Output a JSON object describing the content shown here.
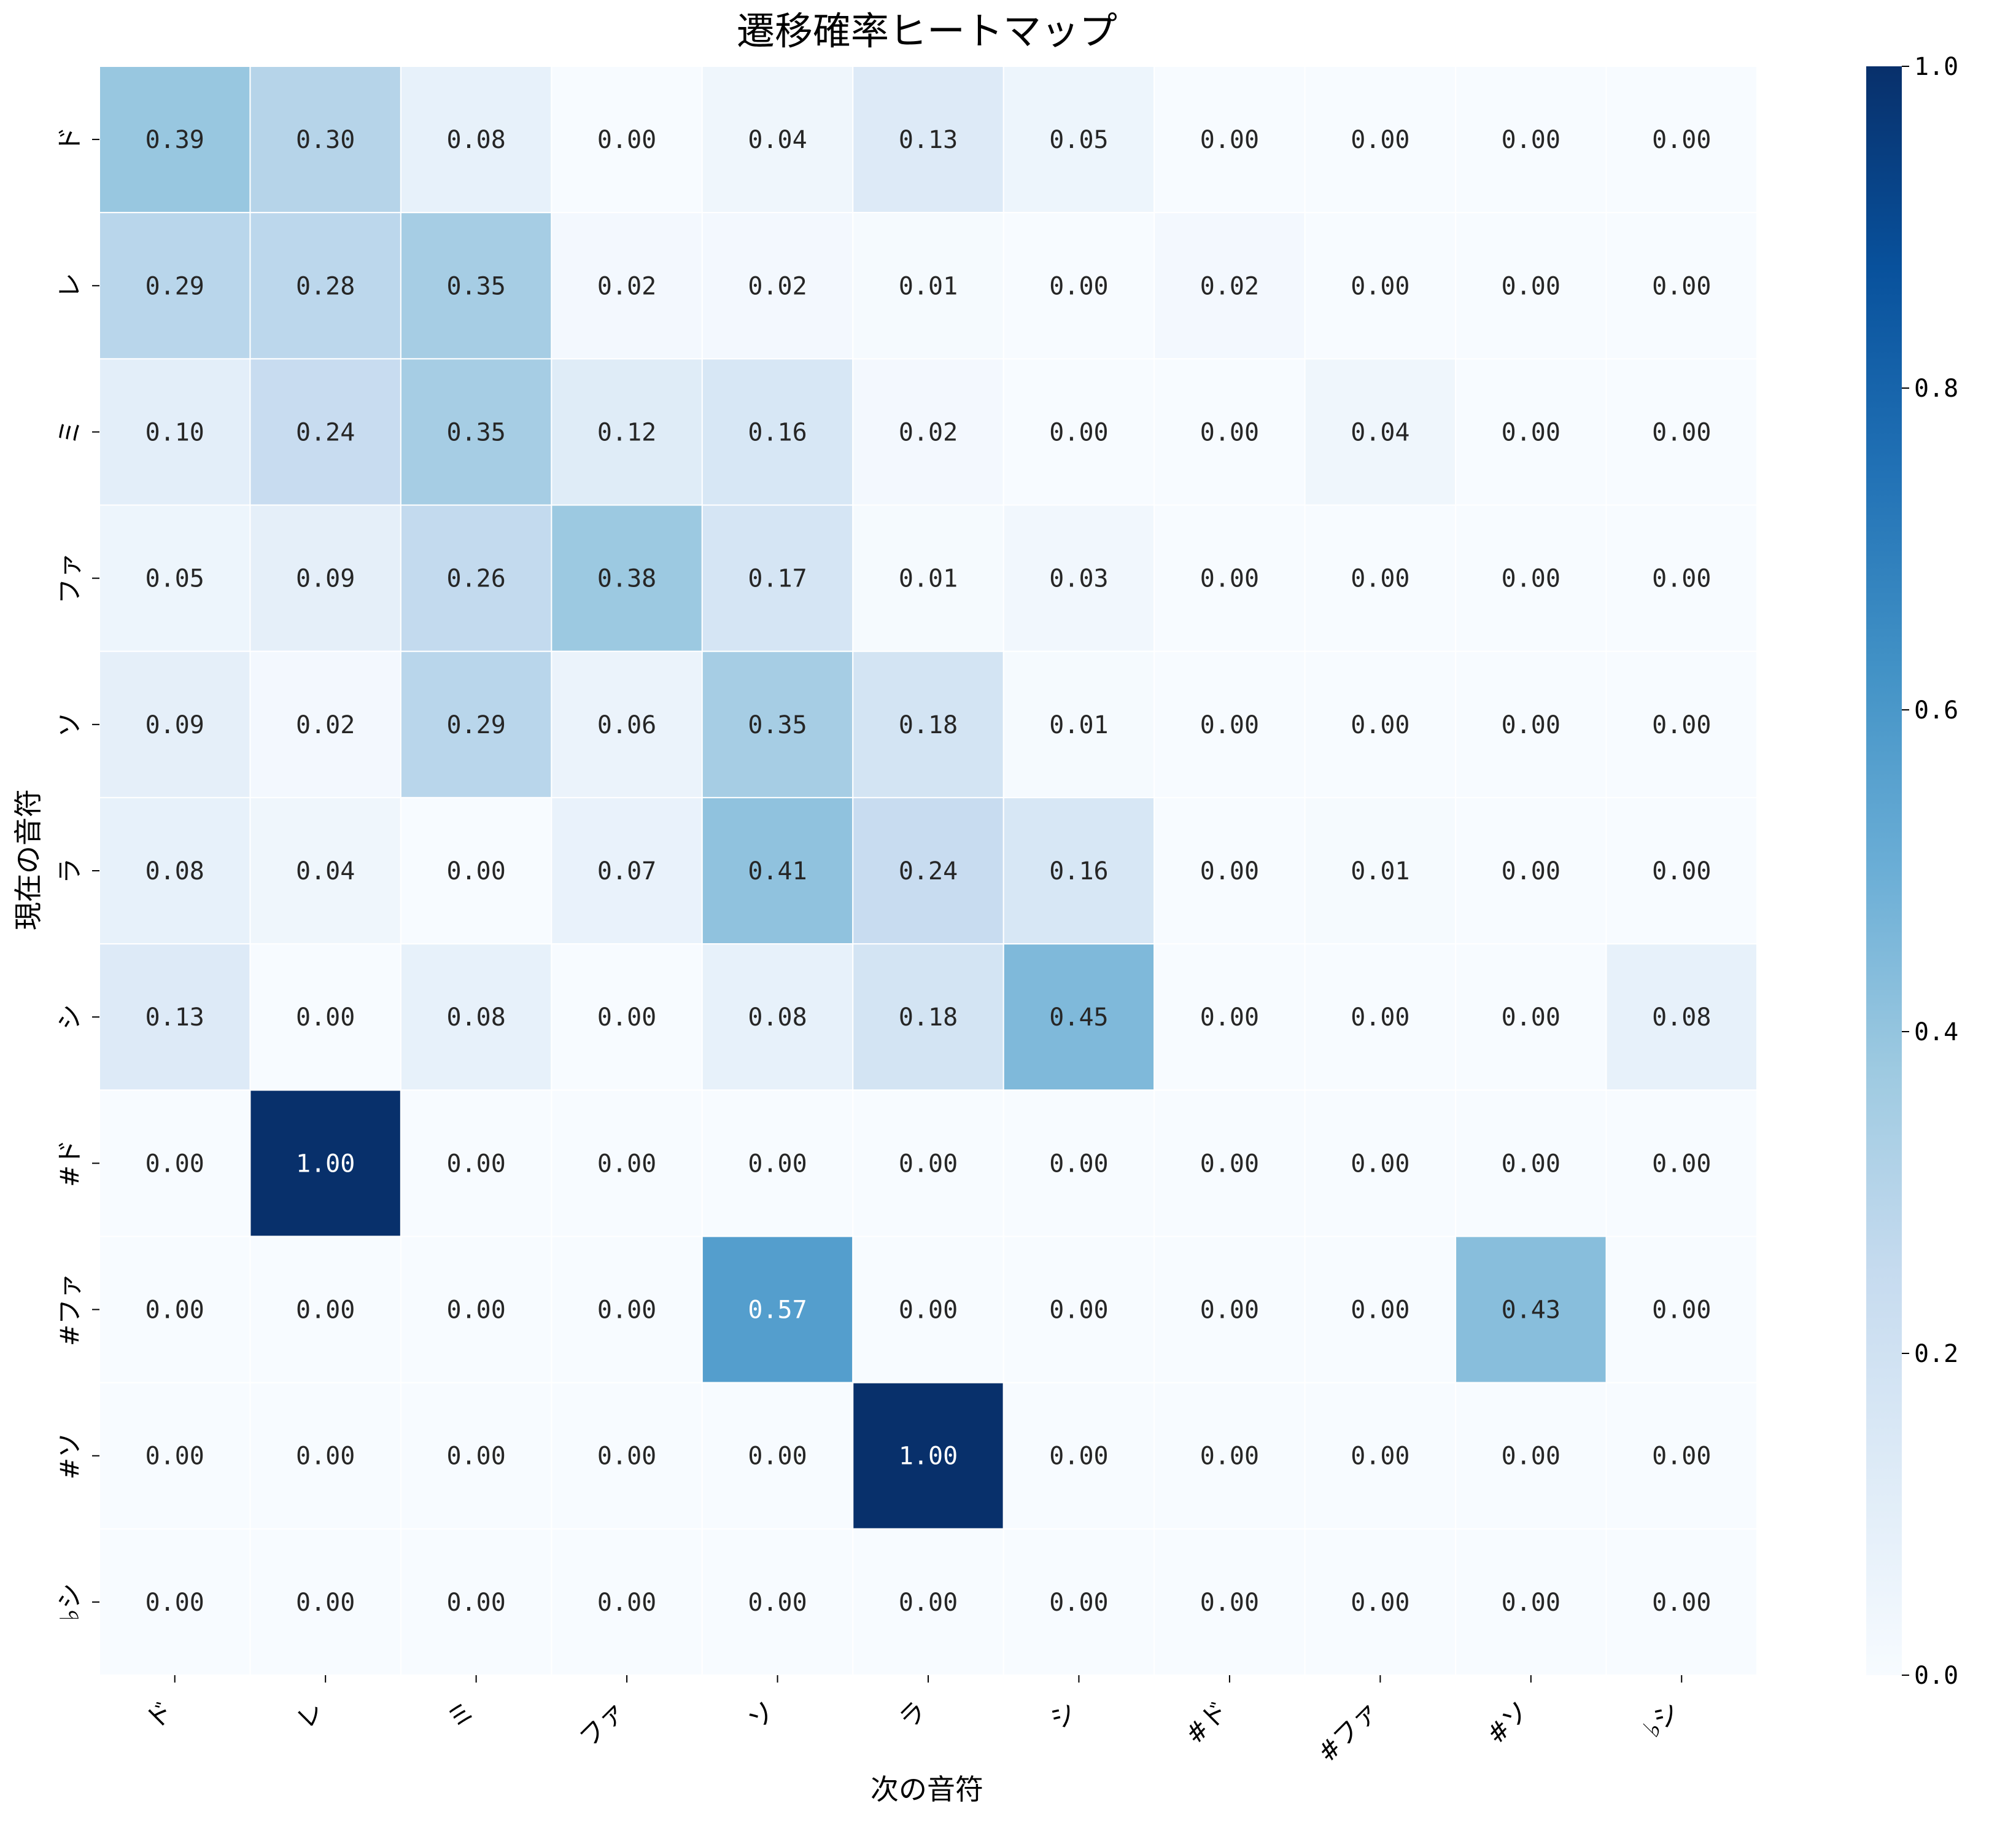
{
  "chart_data": {
    "type": "heatmap",
    "title": "遷移確率ヒートマップ",
    "xlabel": "次の音符",
    "ylabel": "現在の音符",
    "x_categories": [
      "ド",
      "レ",
      "ミ",
      "ファ",
      "ソ",
      "ラ",
      "シ",
      "#ド",
      "#ファ",
      "#ソ",
      "♭シ"
    ],
    "y_categories": [
      "ド",
      "レ",
      "ミ",
      "ファ",
      "ソ",
      "ラ",
      "シ",
      "#ド",
      "#ファ",
      "#ソ",
      "♭シ"
    ],
    "values": [
      [
        0.39,
        0.3,
        0.08,
        0.0,
        0.04,
        0.13,
        0.05,
        0.0,
        0.0,
        0.0,
        0.0
      ],
      [
        0.29,
        0.28,
        0.35,
        0.02,
        0.02,
        0.01,
        0.0,
        0.02,
        0.0,
        0.0,
        0.0
      ],
      [
        0.1,
        0.24,
        0.35,
        0.12,
        0.16,
        0.02,
        0.0,
        0.0,
        0.04,
        0.0,
        0.0
      ],
      [
        0.05,
        0.09,
        0.26,
        0.38,
        0.17,
        0.01,
        0.03,
        0.0,
        0.0,
        0.0,
        0.0
      ],
      [
        0.09,
        0.02,
        0.29,
        0.06,
        0.35,
        0.18,
        0.01,
        0.0,
        0.0,
        0.0,
        0.0
      ],
      [
        0.08,
        0.04,
        0.0,
        0.07,
        0.41,
        0.24,
        0.16,
        0.0,
        0.01,
        0.0,
        0.0
      ],
      [
        0.13,
        0.0,
        0.08,
        0.0,
        0.08,
        0.18,
        0.45,
        0.0,
        0.0,
        0.0,
        0.08
      ],
      [
        0.0,
        1.0,
        0.0,
        0.0,
        0.0,
        0.0,
        0.0,
        0.0,
        0.0,
        0.0,
        0.0
      ],
      [
        0.0,
        0.0,
        0.0,
        0.0,
        0.57,
        0.0,
        0.0,
        0.0,
        0.0,
        0.43,
        0.0
      ],
      [
        0.0,
        0.0,
        0.0,
        0.0,
        0.0,
        1.0,
        0.0,
        0.0,
        0.0,
        0.0,
        0.0
      ],
      [
        0.0,
        0.0,
        0.0,
        0.0,
        0.0,
        0.0,
        0.0,
        0.0,
        0.0,
        0.0,
        0.0
      ]
    ],
    "value_format": "0.00",
    "colormap": "Blues",
    "colormap_stops": [
      "#f7fbff",
      "#deebf7",
      "#c6dbef",
      "#9ecae1",
      "#6baed6",
      "#4292c6",
      "#2171b5",
      "#08519c",
      "#08306b"
    ],
    "vmin": 0.0,
    "vmax": 1.0,
    "colorbar_ticks": [
      "0.0",
      "0.2",
      "0.4",
      "0.6",
      "0.8",
      "1.0"
    ],
    "grid": false
  }
}
